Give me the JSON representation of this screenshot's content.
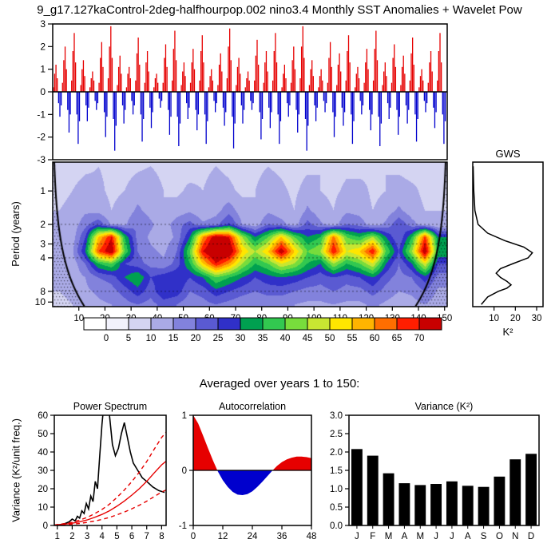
{
  "title": "9_g17.127kaControl-2deg-halfhourpop.002 nino3.4 Monthly SST Anomalies + Wavelet Pow",
  "section_title": "Averaged over years 1 to 150:",
  "chart_data": [
    {
      "id": "sst_anomalies",
      "type": "bar",
      "ylim": [
        -3,
        3
      ],
      "ytick_values": [
        3,
        2,
        1,
        0,
        -1,
        -2,
        -3
      ],
      "x_range_years": [
        0,
        151
      ],
      "x_start_year": 0.25,
      "x_step_years": 0.5,
      "positive_color": "#e60000",
      "negative_color": "#0000cd",
      "values": [
        0.2,
        0.8,
        1.2,
        0.6,
        -0.5,
        -1.1,
        -0.6,
        0.4,
        1.4,
        2.0,
        1.0,
        -0.8,
        -1.8,
        -1.0,
        0.5,
        1.8,
        2.6,
        1.3,
        -1.0,
        -2.3,
        -1.3,
        0.3,
        1.0,
        1.4,
        0.7,
        -0.6,
        -1.3,
        -0.7,
        0.2,
        0.6,
        0.9,
        0.5,
        -0.4,
        -0.8,
        -0.5,
        0.4,
        1.5,
        2.2,
        1.1,
        -0.9,
        -2.0,
        -1.1,
        0.6,
        2.0,
        2.9,
        1.5,
        -1.2,
        -2.6,
        -1.5,
        0.3,
        1.1,
        1.6,
        0.8,
        -0.6,
        -1.4,
        -0.8,
        0.2,
        0.8,
        1.1,
        0.6,
        -0.4,
        -1.0,
        -0.6,
        0.5,
        1.7,
        2.4,
        1.2,
        -1.0,
        -2.2,
        -1.2,
        0.4,
        1.3,
        1.8,
        0.9,
        -0.7,
        -1.6,
        -0.9,
        0.2,
        0.6,
        0.8,
        0.4,
        -0.3,
        -0.7,
        -0.4,
        0.4,
        1.5,
        2.1,
        1.1,
        -0.8,
        -1.9,
        -1.1,
        0.5,
        1.9,
        2.7,
        1.4,
        -1.1,
        -2.4,
        -1.4,
        0.3,
        0.9,
        1.3,
        0.7,
        -0.5,
        -1.2,
        -0.7,
        0.4,
        1.3,
        1.9,
        1.0,
        -0.8,
        -1.7,
        -1.0,
        0.5,
        1.8,
        2.5,
        1.3,
        -1.0,
        -2.3,
        -1.3,
        0.2,
        0.7,
        1.0,
        0.5,
        -0.4,
        -0.9,
        -0.5,
        0.3,
        1.2,
        1.7,
        0.9,
        -0.7,
        -1.5,
        -0.9,
        0.6,
        2.0,
        2.8,
        1.4,
        -1.1,
        -2.5,
        -1.4,
        0.3,
        1.1,
        1.5,
        0.8,
        -0.6,
        -1.4,
        -0.8,
        0.2,
        0.6,
        0.9,
        0.5,
        -0.4,
        -0.8,
        -0.5,
        0.5,
        1.6,
        2.3,
        1.2,
        -0.9,
        -2.1,
        -1.2,
        0.4,
        1.3,
        1.8,
        0.9,
        -0.7,
        -1.6,
        -0.9,
        0.5,
        1.8,
        2.6,
        1.3,
        -1.0,
        -2.3,
        -1.3,
        0.2,
        0.8,
        1.2,
        0.6,
        -0.5,
        -1.1,
        -0.6,
        0.4,
        1.4,
        2.0,
        1.0,
        -0.8,
        -1.8,
        -1.0,
        0.6,
        2.0,
        2.9,
        1.5,
        -1.2,
        -2.6,
        -1.5,
        0.3,
        1.0,
        1.4,
        0.7,
        -0.6,
        -1.3,
        -0.7,
        0.2,
        0.7,
        1.0,
        0.5,
        -0.4,
        -0.9,
        -0.5,
        0.4,
        1.5,
        2.2,
        1.1,
        -0.9,
        -2.0,
        -1.1,
        0.3,
        1.2,
        1.7,
        0.9,
        -0.7,
        -1.5,
        -0.9,
        0.5,
        1.8,
        2.5,
        1.3,
        -1.0,
        -2.3,
        -1.3,
        0.2,
        0.8,
        1.1,
        0.6,
        -0.4,
        -1.0,
        -0.6,
        0.4,
        1.3,
        1.9,
        1.0,
        -0.8,
        -1.7,
        -1.0,
        0.5,
        1.9,
        2.7,
        1.4,
        -1.1,
        -2.4,
        -1.4,
        0.3,
        0.9,
        1.3,
        0.7,
        -0.5,
        -1.2,
        -0.7,
        0.4,
        1.5,
        2.1,
        1.1,
        -0.8,
        -1.9,
        -1.1,
        0.3,
        1.1,
        1.6,
        0.8,
        -0.6,
        -1.4,
        -0.8,
        0.5,
        1.7,
        2.4,
        1.2,
        -1.0,
        -2.2,
        -1.2,
        0.2,
        0.7,
        1.0,
        0.5,
        -0.4,
        -0.9,
        -0.5,
        0.4,
        1.3,
        1.8,
        0.9,
        -0.7,
        -1.6,
        -0.9,
        0.5,
        1.8,
        2.6,
        1.3,
        -1.0,
        -2.3,
        -1.3
      ]
    },
    {
      "id": "wavelet_power",
      "type": "heatmap",
      "ylabel": "Period (years)",
      "period_min": 0.55,
      "period_max": 11,
      "x_max": 151,
      "xticks": [
        10,
        20,
        30,
        40,
        50,
        60,
        70,
        80,
        90,
        100,
        110,
        120,
        130,
        140,
        150
      ],
      "period_ticks": [
        1,
        2,
        3,
        4,
        8,
        10
      ],
      "dashed_period_lines": [
        2,
        3,
        4,
        8
      ],
      "coi_slope": 0.9,
      "levels": [
        0,
        5,
        10,
        15,
        20,
        25,
        30,
        35,
        40,
        45,
        50,
        55,
        60,
        65,
        70
      ],
      "palette": [
        "#ffffff",
        "#f2f2fc",
        "#d4d4f2",
        "#aaaae6",
        "#8282dc",
        "#5a5ad2",
        "#3030c8",
        "#00a050",
        "#32c850",
        "#78dc3c",
        "#c8e632",
        "#ffe600",
        "#ffb400",
        "#ff6e00",
        "#ff1e00",
        "#c80000"
      ],
      "grid_years": [
        2.5,
        7.5,
        12.5,
        17.5,
        22.5,
        27.5,
        32.5,
        37.5,
        42.5,
        47.5,
        52.5,
        57.5,
        62.5,
        67.5,
        72.5,
        77.5,
        82.5,
        87.5,
        92.5,
        97.5,
        102.5,
        107.5,
        112.5,
        117.5,
        122.5,
        127.5,
        132.5,
        137.5,
        142.5,
        147.5
      ],
      "grid_periods": [
        0.6,
        1.0,
        1.5,
        2.0,
        2.6,
        3.5,
        4.5,
        6.0,
        8.0,
        10.5
      ],
      "values": [
        [
          8,
          8,
          9,
          10,
          9,
          8,
          9,
          10,
          8,
          9,
          8,
          9,
          10,
          9,
          8,
          9,
          10,
          9,
          8,
          9,
          10,
          8,
          9,
          8,
          9,
          10,
          9,
          8,
          9,
          8
        ],
        [
          9,
          10,
          12,
          11,
          9,
          10,
          13,
          14,
          10,
          9,
          11,
          10,
          12,
          11,
          9,
          10,
          12,
          11,
          9,
          12,
          10,
          9,
          11,
          12,
          9,
          10,
          12,
          11,
          9,
          9
        ],
        [
          10,
          11,
          14,
          13,
          10,
          12,
          16,
          13,
          10,
          12,
          14,
          11,
          13,
          18,
          12,
          10,
          14,
          12,
          10,
          16,
          12,
          10,
          14,
          13,
          10,
          12,
          16,
          12,
          10,
          10
        ],
        [
          10,
          12,
          18,
          24,
          14,
          14,
          20,
          16,
          12,
          18,
          22,
          16,
          18,
          26,
          15,
          12,
          20,
          17,
          12,
          22,
          16,
          12,
          20,
          18,
          12,
          16,
          24,
          17,
          12,
          10
        ],
        [
          10,
          12,
          25,
          55,
          70,
          35,
          18,
          14,
          12,
          16,
          30,
          60,
          75,
          70,
          45,
          30,
          40,
          55,
          40,
          30,
          35,
          62,
          40,
          35,
          45,
          30,
          20,
          35,
          66,
          30
        ],
        [
          12,
          14,
          30,
          65,
          76,
          40,
          20,
          16,
          14,
          20,
          40,
          70,
          80,
          78,
          55,
          45,
          55,
          75,
          55,
          40,
          45,
          70,
          50,
          55,
          70,
          40,
          25,
          45,
          76,
          35
        ],
        [
          12,
          12,
          20,
          35,
          40,
          25,
          22,
          18,
          16,
          22,
          35,
          55,
          70,
          60,
          45,
          35,
          40,
          50,
          45,
          35,
          30,
          45,
          35,
          40,
          50,
          30,
          20,
          30,
          50,
          25
        ],
        [
          10,
          12,
          15,
          20,
          22,
          30,
          35,
          25,
          28,
          30,
          25,
          30,
          40,
          35,
          30,
          25,
          28,
          30,
          28,
          25,
          22,
          25,
          22,
          25,
          30,
          22,
          18,
          20,
          28,
          18
        ],
        [
          10,
          12,
          14,
          16,
          18,
          22,
          28,
          22,
          30,
          28,
          20,
          22,
          28,
          25,
          22,
          20,
          22,
          22,
          20,
          18,
          18,
          20,
          18,
          18,
          22,
          18,
          15,
          16,
          20,
          14
        ],
        [
          8,
          10,
          12,
          14,
          15,
          18,
          20,
          18,
          22,
          20,
          16,
          18,
          20,
          18,
          16,
          15,
          16,
          16,
          15,
          14,
          14,
          15,
          14,
          14,
          16,
          14,
          12,
          13,
          15,
          12
        ]
      ]
    },
    {
      "id": "gws",
      "type": "line",
      "title": "GWS",
      "xlabel": "K²",
      "xticks": [
        10,
        20,
        30
      ],
      "xlim": [
        0,
        33
      ],
      "line_color": "#000000",
      "periods": [
        0.6,
        1,
        1.5,
        2,
        2.4,
        2.8,
        3.2,
        3.6,
        4,
        4.5,
        5,
        5.5,
        6,
        6.5,
        7,
        7.5,
        8,
        9,
        10.5
      ],
      "values": [
        0.2,
        0.5,
        1,
        2.5,
        7,
        15,
        24,
        28,
        26,
        19,
        13,
        11,
        13,
        16,
        18,
        16,
        12,
        7,
        4
      ]
    },
    {
      "id": "power_spectrum",
      "type": "line",
      "title": "Power Spectrum",
      "ylabel": "Variance (K²/unit freq.)",
      "xlim": [
        0.8,
        8.3
      ],
      "ylim": [
        0,
        60
      ],
      "xticks": [
        1,
        2,
        3,
        4,
        5,
        6,
        7,
        8
      ],
      "yticks": [
        0,
        10,
        20,
        30,
        40,
        50,
        60
      ],
      "series": [
        {
          "name": "spectrum",
          "color": "#000000",
          "style": "solid",
          "x": [
            0.9,
            1.2,
            1.5,
            1.8,
            2.0,
            2.2,
            2.35,
            2.5,
            2.65,
            2.8,
            2.95,
            3.1,
            3.25,
            3.4,
            3.55,
            3.7,
            3.85,
            4.0,
            4.15,
            4.3,
            4.5,
            4.7,
            4.9,
            5.1,
            5.3,
            5.5,
            5.7,
            5.9,
            6.1,
            6.4,
            6.7,
            7.0,
            7.4,
            7.8,
            8.2
          ],
          "y": [
            0.2,
            0.5,
            1.0,
            2.0,
            3.5,
            2.5,
            5.0,
            4.0,
            8.0,
            6.5,
            12,
            9,
            16,
            13,
            24,
            20,
            38,
            55,
            68,
            72,
            60,
            44,
            38,
            42,
            50,
            56,
            48,
            40,
            34,
            30,
            26,
            24,
            21,
            19,
            18
          ]
        },
        {
          "name": "red-noise-mean",
          "color": "#e60000",
          "style": "solid",
          "x": [
            0.8,
            1.5,
            2,
            2.5,
            3,
            3.5,
            4,
            4.5,
            5,
            5.5,
            6,
            6.5,
            7,
            7.5,
            8,
            8.3
          ],
          "y": [
            0.2,
            0.7,
            1.2,
            2,
            3,
            4.4,
            6,
            8,
            10.5,
            13.3,
            16.5,
            20,
            24,
            28.6,
            33,
            35
          ]
        },
        {
          "name": "confidence-upper",
          "color": "#e60000",
          "style": "dashed",
          "x": [
            0.8,
            1.5,
            2,
            2.5,
            3,
            3.5,
            4,
            4.5,
            5,
            5.5,
            6,
            6.5,
            7,
            7.5,
            8,
            8.3
          ],
          "y": [
            0.3,
            1.0,
            1.7,
            2.9,
            4.4,
            6.4,
            8.7,
            11.6,
            15.2,
            19.3,
            23.9,
            29,
            34.8,
            41.5,
            47.9,
            50.8
          ]
        },
        {
          "name": "confidence-lower",
          "color": "#e60000",
          "style": "dashed",
          "x": [
            0.8,
            1.5,
            2,
            2.5,
            3,
            3.5,
            4,
            4.5,
            5,
            5.5,
            6,
            6.5,
            7,
            7.5,
            8,
            8.3
          ],
          "y": [
            0.1,
            0.4,
            0.7,
            1.1,
            1.7,
            2.4,
            3.3,
            4.4,
            5.8,
            7.3,
            9.1,
            11,
            13.2,
            15.7,
            18.2,
            19.3
          ]
        }
      ]
    },
    {
      "id": "autocorrelation",
      "type": "area",
      "title": "Autocorrelation",
      "xlim": [
        0,
        48
      ],
      "ylim": [
        -1,
        1
      ],
      "xticks": [
        0,
        12,
        24,
        36,
        48
      ],
      "yticks": [
        1,
        0,
        -1
      ],
      "positive_fill": "#e60000",
      "negative_fill": "#0000cd",
      "lags": [
        0,
        2,
        4,
        6,
        8,
        10,
        12,
        14,
        16,
        18,
        20,
        22,
        24,
        26,
        28,
        30,
        32,
        34,
        36,
        38,
        40,
        42,
        44,
        46,
        48
      ],
      "values": [
        1.0,
        0.85,
        0.63,
        0.4,
        0.18,
        -0.02,
        -0.18,
        -0.3,
        -0.39,
        -0.44,
        -0.45,
        -0.43,
        -0.38,
        -0.3,
        -0.21,
        -0.11,
        -0.01,
        0.08,
        0.15,
        0.2,
        0.23,
        0.25,
        0.25,
        0.24,
        0.22
      ]
    },
    {
      "id": "variance_by_month",
      "type": "bar",
      "title": "Variance (K²)",
      "categories": [
        "J",
        "F",
        "M",
        "A",
        "M",
        "J",
        "J",
        "A",
        "S",
        "O",
        "N",
        "D"
      ],
      "values": [
        2.08,
        1.9,
        1.42,
        1.15,
        1.1,
        1.13,
        1.2,
        1.08,
        1.05,
        1.33,
        1.8,
        1.95
      ],
      "ylim": [
        0,
        3
      ],
      "ytick_labels": [
        "0.0",
        "0.5",
        "1.0",
        "1.5",
        "2.0",
        "2.5",
        "3.0"
      ],
      "bar_color": "#000000"
    }
  ]
}
